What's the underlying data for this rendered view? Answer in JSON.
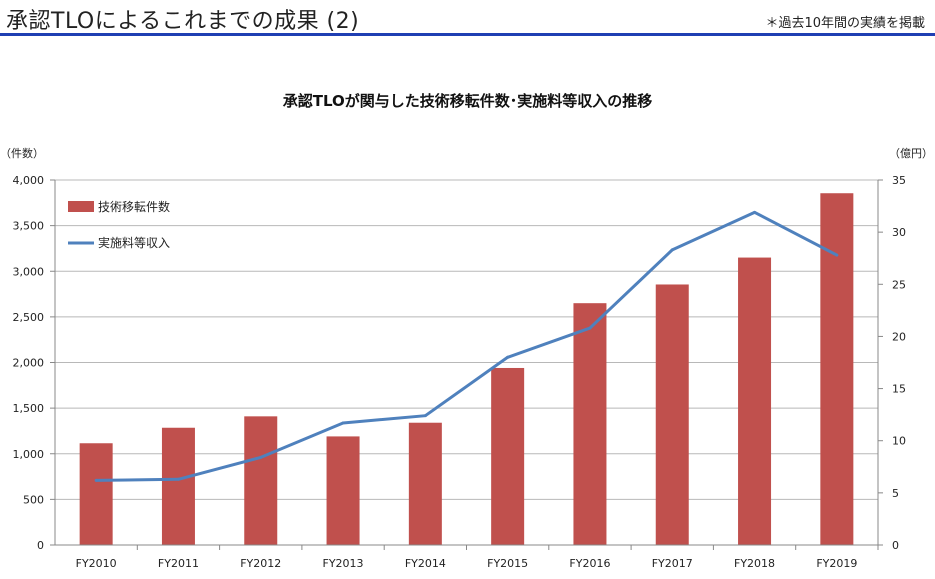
{
  "header": {
    "title": "承認TLOによるこれまでの成果 (2)",
    "note": "＊過去10年間の実績を掲載"
  },
  "colors": {
    "bar": "#c0504d",
    "line": "#4f81bd",
    "rule": "#1f3fb3"
  },
  "chart_data": {
    "type": "bar",
    "title": "承認TLOが関与した技術移転件数･実施料等収入の推移",
    "categories": [
      "FY2010",
      "FY2011",
      "FY2012",
      "FY2013",
      "FY2014",
      "FY2015",
      "FY2016",
      "FY2017",
      "FY2018",
      "FY2019"
    ],
    "series": [
      {
        "name": "技術移転件数",
        "type": "bar",
        "axis": "left",
        "values": [
          1115,
          1285,
          1410,
          1190,
          1340,
          1940,
          2650,
          2855,
          3150,
          3855
        ]
      },
      {
        "name": "実施料等収入",
        "type": "line",
        "axis": "right",
        "values": [
          6.2,
          6.3,
          8.4,
          11.7,
          12.4,
          18.0,
          20.8,
          28.3,
          31.9,
          27.8
        ]
      }
    ],
    "y_left": {
      "label": "（件数）",
      "min": 0,
      "max": 4000,
      "step": 500,
      "ticks": [
        "0",
        "500",
        "1,000",
        "1,500",
        "2,000",
        "2,500",
        "3,000",
        "3,500",
        "4,000"
      ]
    },
    "y_right": {
      "label": "（億円）",
      "min": 0,
      "max": 35,
      "step": 5,
      "ticks": [
        "0",
        "5",
        "10",
        "15",
        "20",
        "25",
        "30",
        "35"
      ]
    },
    "grid": true,
    "legend_position": "top-left"
  }
}
